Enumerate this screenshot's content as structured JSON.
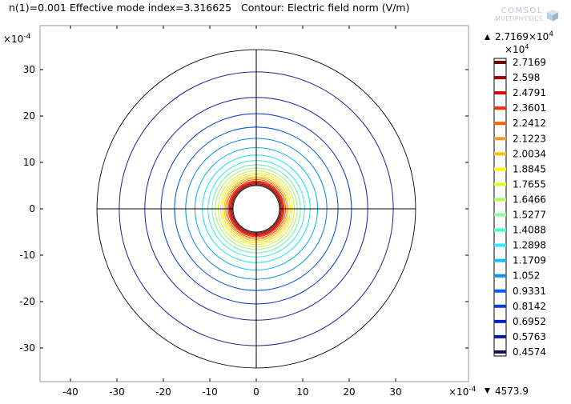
{
  "title": "n(1)=0.001 Effective mode index=3.316625   Contour: Electric field norm (V/m)",
  "logo": {
    "line1": "COMSOL",
    "line2": "MULTIPHYSICS"
  },
  "chart_data": {
    "type": "contour",
    "title": "n(1)=0.001 Effective mode index=3.316625   Contour: Electric field norm (V/m)",
    "x_multiplier": "×10⁻⁴",
    "y_multiplier": "×10⁻⁴",
    "xlim": [
      -47.5,
      46.5
    ],
    "ylim": [
      -37.8,
      37.8
    ],
    "x_ticks": [
      -40,
      -30,
      -20,
      -10,
      0,
      10,
      20,
      30
    ],
    "y_ticks": [
      30,
      20,
      10,
      0,
      -10,
      -20,
      -30
    ],
    "x_tick_labels": [
      "-40",
      "-30",
      "-20",
      "-10",
      "0",
      "10",
      "20",
      "30"
    ],
    "y_tick_labels": [
      "30",
      "20",
      "10",
      "0",
      "-10",
      "-20",
      "-30"
    ],
    "geometry": {
      "outer_boundary_radius": 34.3,
      "inner_hole_radius": 5.0,
      "center": [
        0,
        0
      ]
    },
    "contour_radii": [
      5.2,
      5.4,
      5.6,
      5.8,
      6.0,
      6.3,
      6.6,
      6.9,
      7.3,
      7.7,
      8.2,
      8.8,
      9.5,
      10.4,
      11.6,
      13.2,
      15.2,
      17.6,
      20.5,
      24.0,
      29.5
    ],
    "contour_colors": [
      "#700000",
      "#a00000",
      "#cc0000",
      "#e81000",
      "#f03000",
      "#f86000",
      "#fa9000",
      "#fbc000",
      "#ffe000",
      "#f2f224",
      "#d0f040",
      "#a8f070",
      "#70f0a8",
      "#30f0d8",
      "#10e0f0",
      "#00b0f0",
      "#0080f0",
      "#0050e0",
      "#0030c0",
      "#1a1aa0",
      "#202090"
    ],
    "colorbar": {
      "max_label": "2.7169×10",
      "max_exp": "4",
      "multiplier": "×10",
      "multiplier_exp": "4",
      "min_label": "4573.9",
      "levels": [
        "2.7169",
        "2.598",
        "2.4791",
        "2.3601",
        "2.2412",
        "2.1223",
        "2.0034",
        "1.8845",
        "1.7655",
        "1.6466",
        "1.5277",
        "1.4088",
        "1.2898",
        "1.1709",
        "1.052",
        "0.9331",
        "0.8142",
        "0.6952",
        "0.5763",
        "0.4574"
      ],
      "colors": [
        "#6e0000",
        "#a00000",
        "#d80000",
        "#ff2800",
        "#ff6000",
        "#ff9820",
        "#ffc000",
        "#ffff00",
        "#d8ff20",
        "#a8ff58",
        "#88ff98",
        "#40ffd8",
        "#20f0ff",
        "#10c0ff",
        "#0090ff",
        "#0060f0",
        "#0040e0",
        "#0020d0",
        "#001aa8",
        "#10105e"
      ]
    }
  }
}
